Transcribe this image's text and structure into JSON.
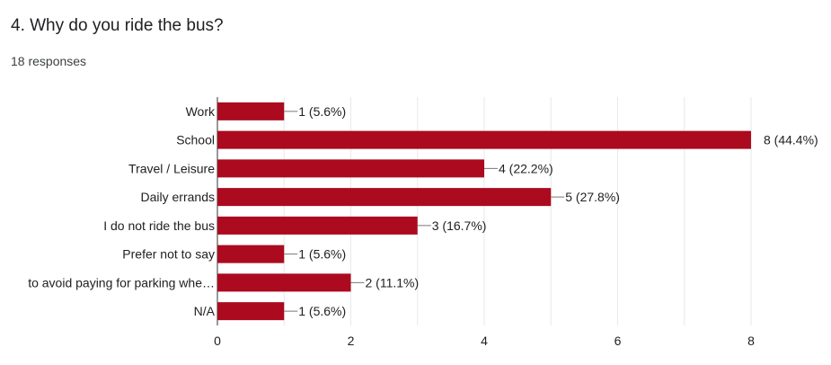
{
  "question": {
    "title": "4. Why do you ride the bus?",
    "responses": "18 responses"
  },
  "colors": {
    "bar": "#ab0a1f",
    "grid": "#e8e8e8",
    "axis": "#333333",
    "text": "#202124"
  },
  "chart_data": {
    "type": "bar",
    "orientation": "horizontal",
    "categories": [
      "Work",
      "School",
      "Travel / Leisure",
      "Daily errands",
      "I do not ride the bus",
      "Prefer not to say",
      "to avoid paying for parking whe…",
      "N/A"
    ],
    "values": [
      1,
      8,
      4,
      5,
      3,
      1,
      2,
      1
    ],
    "data_labels": [
      "1 (5.6%)",
      "8 (44.4%)",
      "4 (22.2%)",
      "5 (27.8%)",
      "3 (16.7%)",
      "1 (5.6%)",
      "2 (11.1%)",
      "1 (5.6%)"
    ],
    "xlim": [
      0,
      8
    ],
    "xticks": [
      0,
      2,
      4,
      6,
      8
    ],
    "grid": true,
    "legend": "none"
  }
}
